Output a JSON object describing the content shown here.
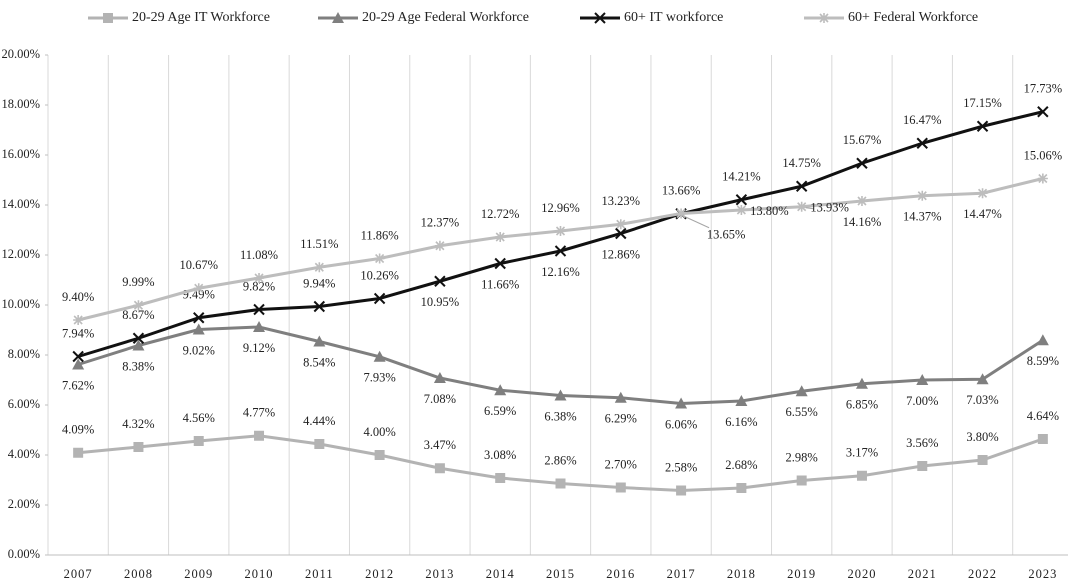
{
  "chart_data": {
    "type": "line",
    "categories": [
      "2007",
      "2008",
      "2009",
      "2010",
      "2011",
      "2012",
      "2013",
      "2014",
      "2015",
      "2016",
      "2017",
      "2018",
      "2019",
      "2020",
      "2021",
      "2022",
      "2023"
    ],
    "ylim": [
      0,
      20
    ],
    "yticks": [
      {
        "value": 0,
        "label": "0.00%"
      },
      {
        "value": 2,
        "label": "2.00%"
      },
      {
        "value": 4,
        "label": "4.00%"
      },
      {
        "value": 6,
        "label": "6.00%"
      },
      {
        "value": 8,
        "label": "8.00%"
      },
      {
        "value": 10,
        "label": "10.00%"
      },
      {
        "value": 12,
        "label": "12.00%"
      },
      {
        "value": 14,
        "label": "14.00%"
      },
      {
        "value": 16,
        "label": "16.00%"
      },
      {
        "value": 18,
        "label": "18.00%"
      },
      {
        "value": 20,
        "label": "20.00%"
      }
    ],
    "legend": "top",
    "series": [
      {
        "name": "20-29 Age IT Workforce",
        "color": "#b3b3b3",
        "marker": "square",
        "values": [
          4.09,
          4.32,
          4.56,
          4.77,
          4.44,
          4.0,
          3.47,
          3.08,
          2.86,
          2.7,
          2.58,
          2.68,
          2.98,
          3.17,
          3.56,
          3.8,
          4.64
        ],
        "value_labels": [
          "4.09%",
          "4.32%",
          "4.56%",
          "4.77%",
          "4.44%",
          "4.00%",
          "3.47%",
          "3.08%",
          "2.86%",
          "2.70%",
          "2.58%",
          "2.68%",
          "2.98%",
          "3.17%",
          "3.56%",
          "3.80%",
          "4.64%"
        ]
      },
      {
        "name": "20-29 Age Federal Workforce",
        "color": "#7f7f7f",
        "marker": "triangle",
        "values": [
          7.62,
          8.38,
          9.02,
          9.12,
          8.54,
          7.93,
          7.08,
          6.59,
          6.38,
          6.29,
          6.06,
          6.16,
          6.55,
          6.85,
          7.0,
          7.03,
          8.59
        ],
        "value_labels": [
          "7.62%",
          "8.38%",
          "9.02%",
          "9.12%",
          "8.54%",
          "7.93%",
          "7.08%",
          "6.59%",
          "6.38%",
          "6.29%",
          "6.06%",
          "6.16%",
          "6.55%",
          "6.85%",
          "7.00%",
          "7.03%",
          "8.59%"
        ]
      },
      {
        "name": "60+ IT workforce",
        "color": "#111111",
        "marker": "x",
        "values": [
          7.94,
          8.67,
          9.49,
          9.82,
          9.94,
          10.26,
          10.95,
          11.66,
          12.16,
          12.86,
          13.65,
          14.21,
          14.75,
          15.67,
          16.47,
          17.15,
          17.73
        ],
        "value_labels": [
          "7.94%",
          "8.67%",
          "9.49%",
          "9.82%",
          "9.94%",
          "10.26%",
          "10.95%",
          "11.66%",
          "12.16%",
          "12.86%",
          "13.65%",
          "14.21%",
          "14.75%",
          "15.67%",
          "16.47%",
          "17.15%",
          "17.73%"
        ]
      },
      {
        "name": "60+ Federal Workforce",
        "color": "#bdbdbd",
        "marker": "star",
        "values": [
          9.4,
          9.99,
          10.67,
          11.08,
          11.51,
          11.86,
          12.37,
          12.72,
          12.96,
          13.23,
          13.66,
          13.8,
          13.93,
          14.16,
          14.37,
          14.47,
          15.06
        ],
        "value_labels": [
          "9.40%",
          "9.99%",
          "10.67%",
          "11.08%",
          "11.51%",
          "11.86%",
          "12.37%",
          "12.72%",
          "12.96%",
          "13.23%",
          "13.66%",
          "13.80%",
          "13.93%",
          "14.16%",
          "14.37%",
          "14.47%",
          "15.06%"
        ]
      }
    ]
  }
}
